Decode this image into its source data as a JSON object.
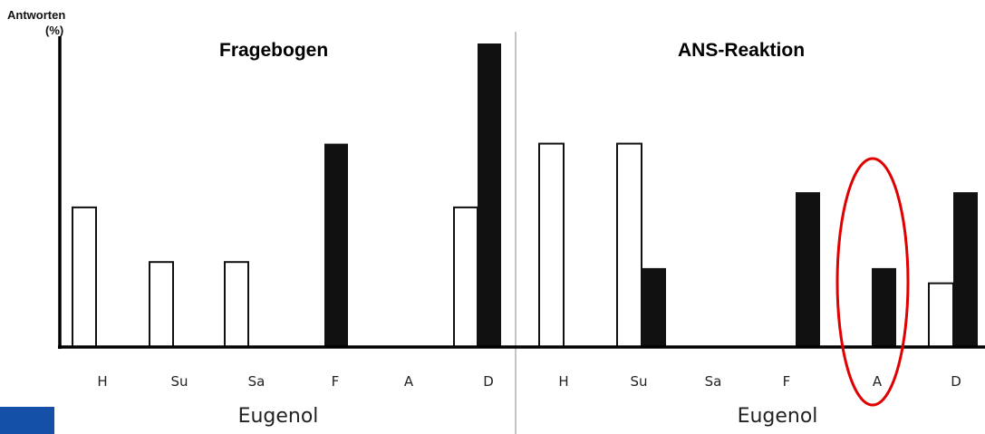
{
  "ylabel": "Antworten (%)",
  "ylabel_line1": "Antworten",
  "ylabel_line2": "(%)",
  "colors": {
    "open_bar": "#ffffff",
    "filled_bar": "#111111",
    "highlight": "#e00000",
    "corner_badge": "#1550a8"
  },
  "chart_data": [
    {
      "type": "bar",
      "title": "Fragebogen",
      "xlabel": "Eugenol",
      "categories": [
        "H",
        "Su",
        "Sa",
        "F",
        "A",
        "D"
      ],
      "series": [
        {
          "values": [
            46,
            28,
            28,
            0,
            0,
            46
          ]
        },
        {
          "values": [
            0,
            0,
            0,
            67,
            0,
            100
          ]
        }
      ],
      "ylim": [
        0,
        100
      ],
      "grid": false
    },
    {
      "type": "bar",
      "title": "ANS-Reaktion",
      "xlabel": "Eugenol",
      "categories": [
        "H",
        "Su",
        "Sa",
        "F",
        "A",
        "D"
      ],
      "series": [
        {
          "values": [
            67,
            67,
            0,
            0,
            0,
            21
          ]
        },
        {
          "values": [
            0,
            26,
            0,
            51,
            26,
            51
          ]
        }
      ],
      "ylim": [
        0,
        100
      ],
      "grid": false,
      "annotation": {
        "type": "ellipse",
        "target_category": "A"
      }
    }
  ]
}
